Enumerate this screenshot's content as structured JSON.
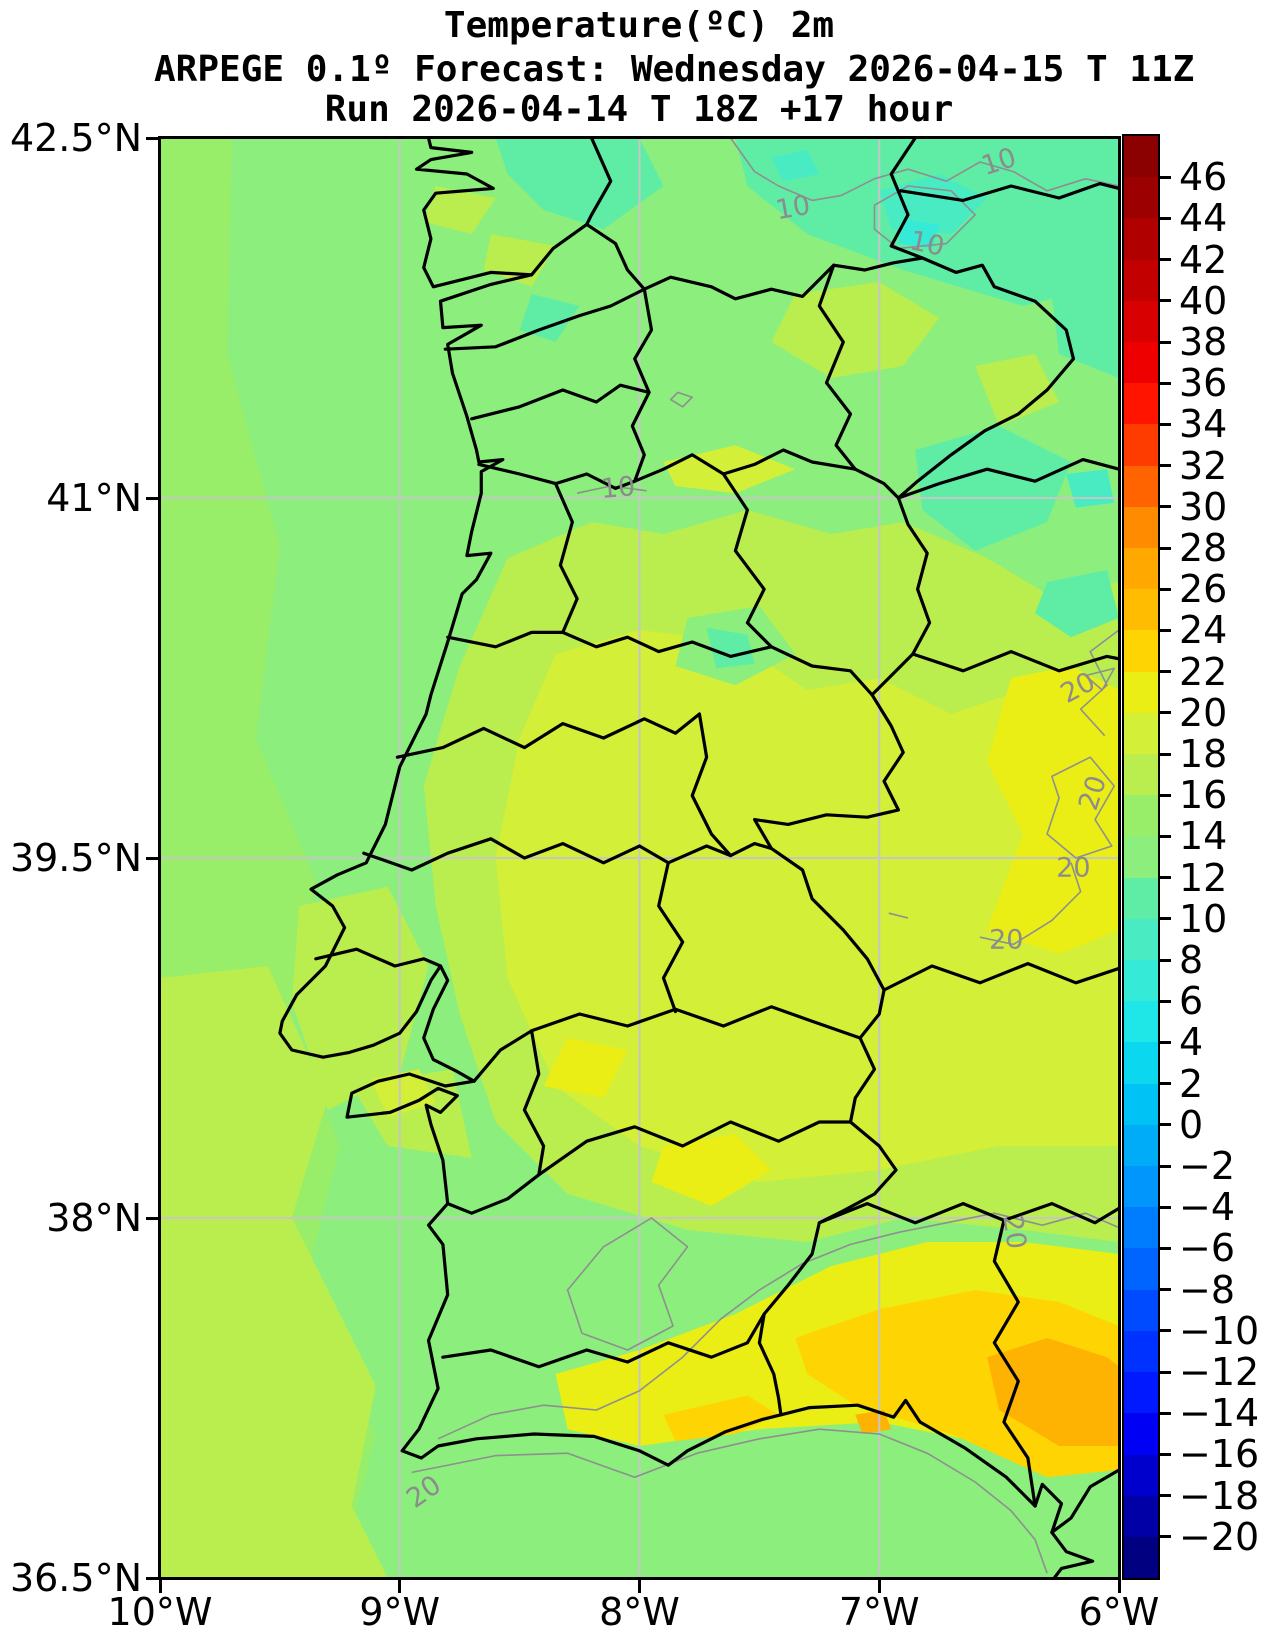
{
  "titles": {
    "line1": "Temperature(ºC) 2m",
    "line2": "ARPEGE 0.1º Forecast: Wednesday 2026-04-15 T 11Z",
    "line3": "Run 2026-04-14 T 18Z +17 hour"
  },
  "axes": {
    "extent": {
      "lon_min": -10,
      "lon_max": -6,
      "lat_min": 36.5,
      "lat_max": 42.5
    },
    "lat_ticks": [
      {
        "label": "42.5°N",
        "lat": 42.5
      },
      {
        "label": "41°N",
        "lat": 41
      },
      {
        "label": "39.5°N",
        "lat": 39.5
      },
      {
        "label": "38°N",
        "lat": 38
      },
      {
        "label": "36.5°N",
        "lat": 36.5
      }
    ],
    "lon_ticks": [
      {
        "label": "10°W",
        "lon": -10
      },
      {
        "label": "9°W",
        "lon": -9
      },
      {
        "label": "8°W",
        "lon": -8
      },
      {
        "label": "7°W",
        "lon": -7
      },
      {
        "label": "6°W",
        "lon": -6
      }
    ],
    "lat_gridlines": [
      41,
      39.5,
      38
    ],
    "lon_gridlines": [
      -9,
      -8,
      -7
    ]
  },
  "colorbar": {
    "tick_labels_top_to_bottom": [
      "46",
      "44",
      "42",
      "40",
      "38",
      "36",
      "34",
      "32",
      "30",
      "28",
      "26",
      "24",
      "22",
      "20",
      "18",
      "16",
      "14",
      "12",
      "10",
      "8",
      "6",
      "4",
      "2",
      "0",
      "−2",
      "−4",
      "−6",
      "−8",
      "−10",
      "−12",
      "−14",
      "−16",
      "−18",
      "−20"
    ],
    "segment_colors_top_to_bottom": [
      "#8b0000",
      "#9d0000",
      "#b00000",
      "#c30000",
      "#d80000",
      "#ee0000",
      "#ff1400",
      "#ff3c00",
      "#ff6400",
      "#ff8c00",
      "#ffa800",
      "#ffbc00",
      "#fed402",
      "#eaee14",
      "#d4ef38",
      "#b9ee4e",
      "#98ed69",
      "#8bee7d",
      "#5feda6",
      "#49ecc2",
      "#35ebd7",
      "#20e7e7",
      "#0bd8ef",
      "#00c2f4",
      "#00acf8",
      "#0096fc",
      "#007dff",
      "#0064ff",
      "#004bff",
      "#0032ff",
      "#0019ff",
      "#0000f4",
      "#0000cd",
      "#0000a6",
      "#000080"
    ]
  },
  "map": {
    "grid_color": "#c6c6c6",
    "border_color": "#000000",
    "contour_color": "#8f8f8f",
    "level_colors": {
      "6-8": "#35ebd7",
      "8-10": "#49ecc2",
      "10-12": "#5feda6",
      "12-14": "#8bee7d",
      "14-16": "#98ed69",
      "16-18": "#b9ee4e",
      "18-20": "#d4ef38",
      "20-22": "#eaee14",
      "22-24": "#fed402",
      "24-26": "#feb303"
    },
    "contour_labels": [
      {
        "text": "10",
        "lon": -7.36,
        "lat": 42.21,
        "rot": -10
      },
      {
        "text": "10",
        "lon": -6.5,
        "lat": 42.4,
        "rot": -18
      },
      {
        "text": "10",
        "lon": -6.8,
        "lat": 42.06,
        "rot": 12
      },
      {
        "text": "10",
        "lon": -8.09,
        "lat": 41.04,
        "rot": -5
      },
      {
        "text": "20",
        "lon": -6.17,
        "lat": 40.21,
        "rot": -28
      },
      {
        "text": "20",
        "lon": -6.11,
        "lat": 39.77,
        "rot": -72
      },
      {
        "text": "20",
        "lon": -6.19,
        "lat": 39.46,
        "rot": 0
      },
      {
        "text": "20",
        "lon": -6.47,
        "lat": 39.16,
        "rot": 0
      },
      {
        "text": "20",
        "lon": -6.44,
        "lat": 37.94,
        "rot": 82
      },
      {
        "text": "20",
        "lon": -8.9,
        "lat": 36.86,
        "rot": -35
      }
    ]
  }
}
